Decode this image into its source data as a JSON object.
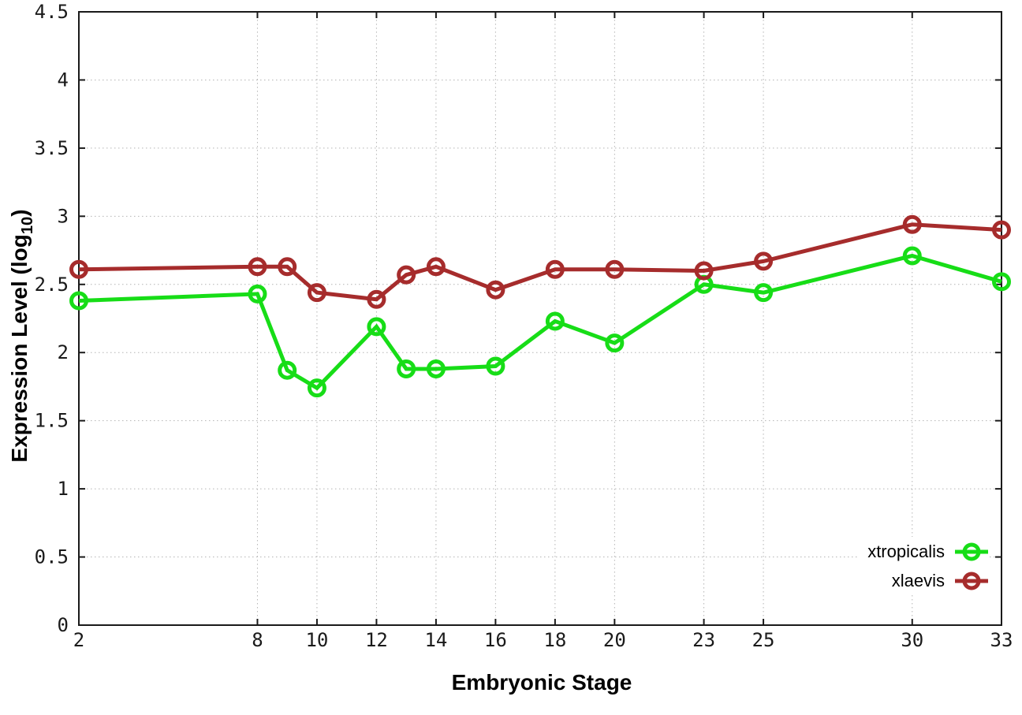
{
  "chart_data": {
    "type": "line",
    "title": "",
    "xlabel": "Embryonic Stage",
    "ylabel": "Expression Level (log10)",
    "ylabel_parts": {
      "main": "Expression Level (log",
      "sub": "10",
      "end": ")"
    },
    "xlim": [
      2,
      33
    ],
    "ylim": [
      0,
      4.5
    ],
    "x_ticks": [
      2,
      8,
      10,
      12,
      14,
      16,
      18,
      20,
      23,
      25,
      30,
      33
    ],
    "y_ticks": [
      "0",
      "0.5",
      "1",
      "1.5",
      "2",
      "2.5",
      "3",
      "3.5",
      "4",
      "4.5"
    ],
    "grid": true,
    "grid_style": "dotted",
    "legend_position": "bottom-right",
    "marker": "open-circle",
    "x": [
      2,
      8,
      9,
      10,
      12,
      13,
      14,
      16,
      18,
      20,
      23,
      25,
      30,
      33
    ],
    "series": [
      {
        "name": "xtropicalis",
        "color": "#17dd17",
        "values": [
          2.38,
          2.43,
          1.87,
          1.74,
          2.19,
          1.88,
          1.88,
          1.9,
          2.23,
          2.07,
          2.5,
          2.44,
          2.71,
          2.52
        ]
      },
      {
        "name": "xlaevis",
        "color": "#a62c2c",
        "values": [
          2.61,
          2.63,
          2.63,
          2.44,
          2.39,
          2.57,
          2.63,
          2.46,
          2.61,
          2.61,
          2.6,
          2.67,
          2.94,
          2.9
        ]
      }
    ]
  },
  "colors": {
    "axis": "#1a1a1a",
    "grid": "#b4b4b4",
    "tick_text": "#1a1a1a"
  }
}
